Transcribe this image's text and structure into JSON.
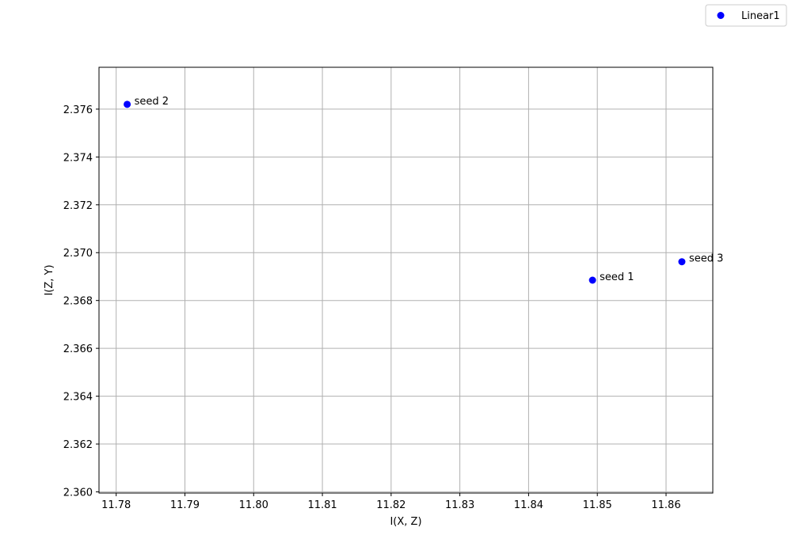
{
  "chart_data": {
    "type": "scatter",
    "title": "",
    "xlabel": "I(X, Z)",
    "ylabel": "I(Z, Y)",
    "xlim": [
      11.7775,
      11.8668
    ],
    "ylim": [
      2.35995,
      2.37775
    ],
    "xticks": [
      11.78,
      11.79,
      11.8,
      11.81,
      11.82,
      11.83,
      11.84,
      11.85,
      11.86
    ],
    "xtick_labels": [
      "11.78",
      "11.79",
      "11.80",
      "11.81",
      "11.82",
      "11.83",
      "11.84",
      "11.85",
      "11.86"
    ],
    "yticks": [
      2.36,
      2.362,
      2.364,
      2.366,
      2.368,
      2.37,
      2.372,
      2.374,
      2.376
    ],
    "ytick_labels": [
      "2.360",
      "2.362",
      "2.364",
      "2.366",
      "2.368",
      "2.370",
      "2.372",
      "2.374",
      "2.376"
    ],
    "grid": true,
    "legend_position": "top-right",
    "series": [
      {
        "name": "Linear1",
        "color": "#0000ff",
        "marker": "circle",
        "points": [
          {
            "x": 11.8493,
            "y": 2.36885,
            "label": "seed 1"
          },
          {
            "x": 11.7816,
            "y": 2.3762,
            "label": "seed 2"
          },
          {
            "x": 11.8623,
            "y": 2.36962,
            "label": "seed 3"
          }
        ]
      }
    ]
  }
}
